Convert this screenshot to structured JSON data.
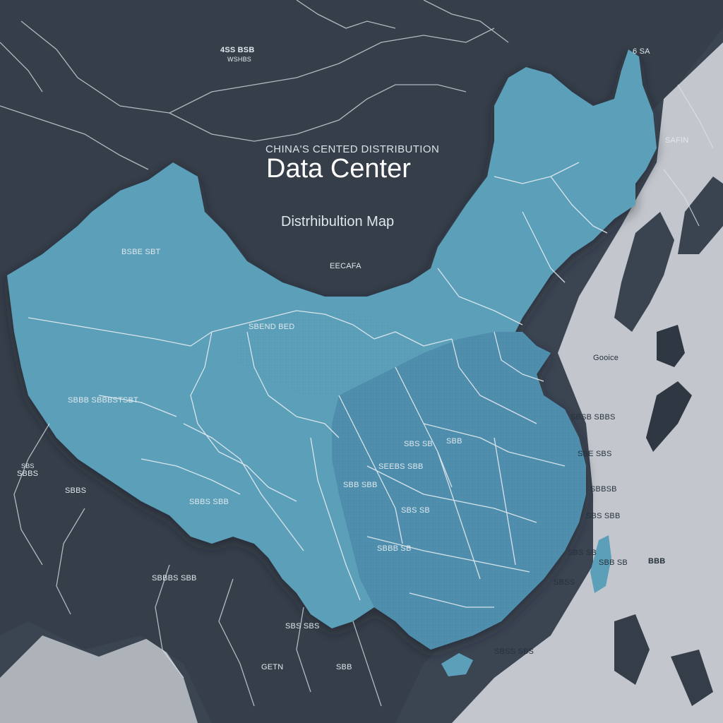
{
  "title": {
    "kicker": "CHINA'S CENTED DISTRIBUTION",
    "main": "Data Center",
    "sub": "Distrhibultion Map"
  },
  "colors": {
    "background_sea_dark": "#3b4552",
    "land_outside": "#333c47",
    "china_fill": "#5a9cb5",
    "china_fill_east": "#4d8aa6",
    "border_line": "#e8eef3",
    "sea_light": "#c9ccd1"
  },
  "labels": {
    "top_center": "4SS BSB",
    "top_center_sub": "WSHBS",
    "top_right": "6 SA",
    "northeast_right": "SAFIN",
    "mongolia": "EECAFA",
    "northwest": "BSBE SBT",
    "north_central": "SBEND BED",
    "west_left": "SBBB SBBBSTSBT",
    "west_edge": "SBBS",
    "west_edge_top": "SBS",
    "southwest_a": "SBBS",
    "tibet": "SBBS SBB",
    "south_tibet": "SBBBS SBB",
    "central_a": "SBS SB",
    "central_b": "SBB",
    "central_c": "SEEBS SBB",
    "central_d": "SBB SBB",
    "central_e": "SBS SB",
    "central_f": "SBBB SB",
    "east_coast_a": "Gooice",
    "east_coast_b": "SBSB SBBS",
    "east_coast_c": "SBE SBS",
    "east_coast_d": "SBBSB",
    "east_coast_e": "SBS SBB",
    "east_coast_f": "SBS SB",
    "east_coast_g": "SBSS",
    "taiwan_label": "SBB SB",
    "pacific_label": "BBB",
    "south_a": "SBSS SBS",
    "south_b": "SBS SBS",
    "bottom_left": "GETN",
    "bottom_mid": "SBB"
  }
}
